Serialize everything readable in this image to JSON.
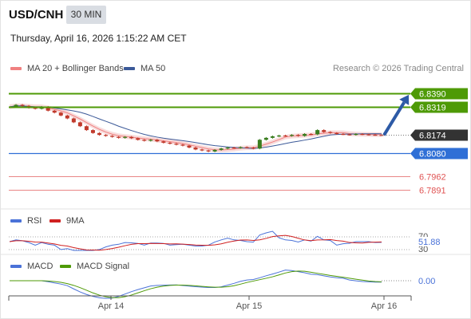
{
  "header": {
    "symbol": "USD/CNH",
    "timeframe": "30 MIN",
    "datetime": "Thursday, April 16, 2026 1:15:22 AM CET"
  },
  "legend": {
    "ma20_label": "MA 20 + Bollinger Bands",
    "ma50_label": "MA 50",
    "copyright": "Research © 2026 Trading Central",
    "rsi_label": "RSI",
    "rsi_ma_label": "9MA",
    "macd_label": "MACD",
    "macd_signal_label": "MACD Signal"
  },
  "colors": {
    "resistance": "#4e9a06",
    "support": "#2f6fd6",
    "stop": "#e05353",
    "current": "#333333",
    "candle_up": "#3a7d1f",
    "candle_down": "#c0392b",
    "ma20": "#f08080",
    "band_fill": "#f6d0d0",
    "ma50": "#3b5998",
    "arrow": "#2d5aa6",
    "rsi": "#4a72d8",
    "rsi_ma": "#d02020",
    "macd": "#4a72d8",
    "macd_signal": "#4e9a06"
  },
  "chart_data": {
    "type": "candlestick",
    "x_ticks": [
      "Apr 14",
      "Apr 15",
      "Apr 16"
    ],
    "ylim": [
      6.781,
      6.848
    ],
    "levels": [
      {
        "value": 6.839,
        "label": "6.8390",
        "kind": "resistance"
      },
      {
        "value": 6.8319,
        "label": "6.8319",
        "kind": "resistance"
      },
      {
        "value": 6.8174,
        "label": "6.8174",
        "kind": "current"
      },
      {
        "value": 6.808,
        "label": "6.8080",
        "kind": "support"
      },
      {
        "value": 6.7962,
        "label": "6.7962",
        "kind": "stop"
      },
      {
        "value": 6.7891,
        "label": "6.7891",
        "kind": "stop"
      }
    ],
    "close_series": [
      6.832,
      6.833,
      6.8325,
      6.8315,
      6.831,
      6.832,
      6.83,
      6.829,
      6.8275,
      6.826,
      6.824,
      6.822,
      6.82,
      6.8185,
      6.8175,
      6.817,
      6.8165,
      6.816,
      6.8165,
      6.8158,
      6.815,
      6.8145,
      6.815,
      6.8142,
      6.8135,
      6.813,
      6.8125,
      6.812,
      6.811,
      6.81,
      6.8095,
      6.809,
      6.8098,
      6.8105,
      6.811,
      6.8108,
      6.8112,
      6.811,
      6.8105,
      6.815,
      6.816,
      6.8168,
      6.8172,
      6.817,
      6.8175,
      6.817,
      6.818,
      6.8178,
      6.82,
      6.819,
      6.8185,
      6.818,
      6.8178,
      6.8176,
      6.818,
      6.8178,
      6.8176,
      6.8175,
      6.8174
    ],
    "rsi": {
      "value_label": "51.88",
      "levels": [
        "70",
        "30"
      ]
    },
    "macd": {
      "value_label": "0.00"
    }
  }
}
